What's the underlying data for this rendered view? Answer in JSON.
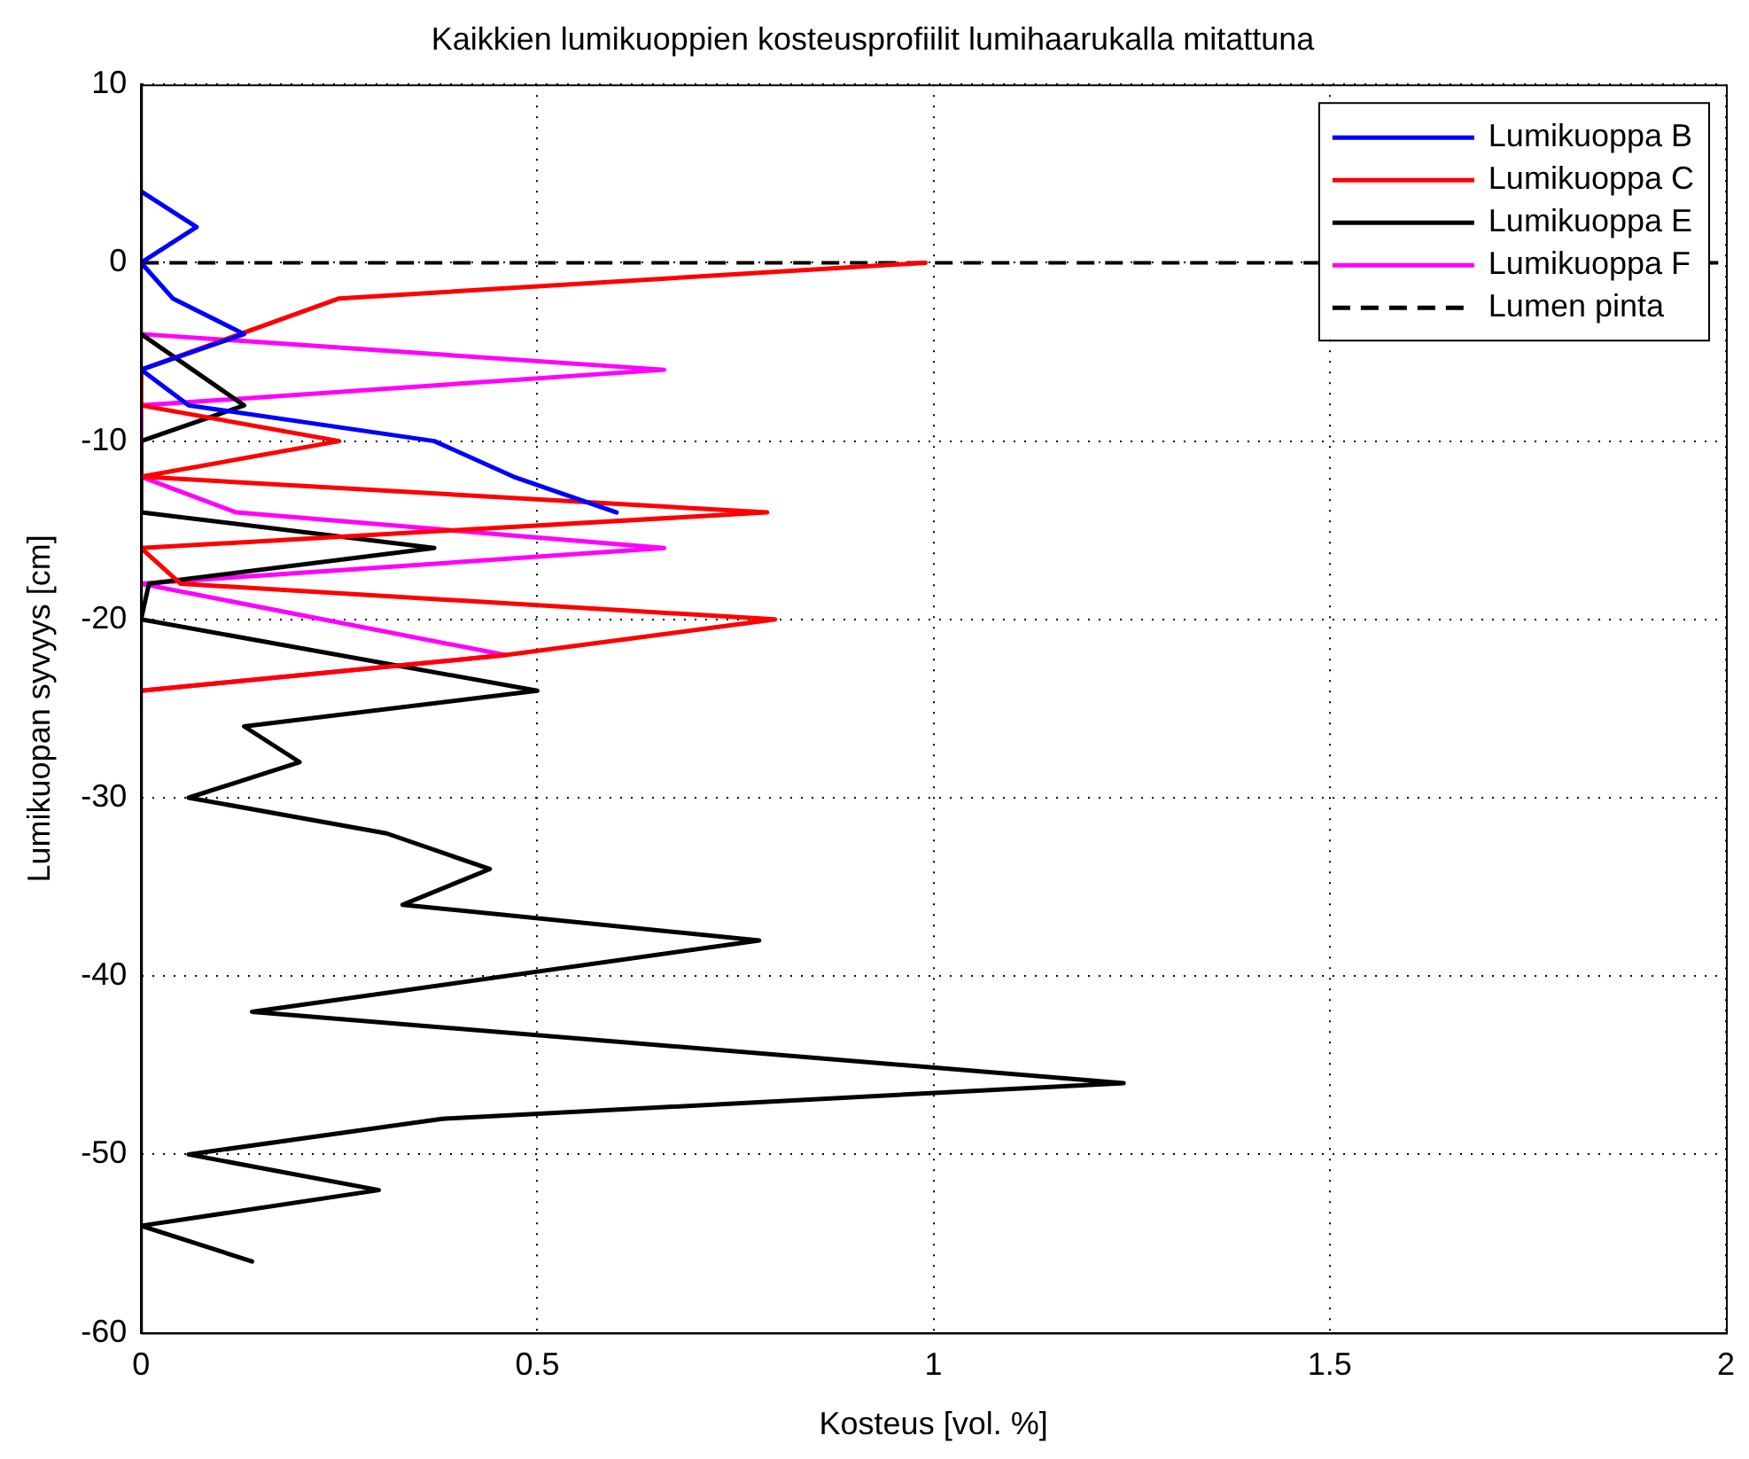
{
  "chart_data": {
    "type": "line",
    "title": "Kaikkien lumikuoppien kosteusprofiilit lumihaarukalla mitattuna",
    "xlabel": "Kosteus [vol. %]",
    "ylabel": "Lumikuopan syvyys [cm]",
    "xlim": [
      0,
      2
    ],
    "xticks": [
      0,
      0.5,
      1,
      1.5,
      2
    ],
    "ylim": [
      -60,
      10
    ],
    "yticks": [
      -60,
      -50,
      -40,
      -30,
      -20,
      -10,
      0,
      10
    ],
    "grid": true,
    "legend": "top right",
    "marker": "none",
    "line_style": "solid",
    "series": [
      {
        "name": "Lumikuoppa B",
        "color": "#0000ff",
        "x": [
          0,
          0.07,
          0,
          0.04,
          0.13,
          0,
          0.06,
          0.37,
          0.47,
          0.6
        ],
        "values": [
          4,
          2,
          0,
          -2,
          -4,
          -6,
          -8,
          -10,
          -12,
          -14
        ]
      },
      {
        "name": "Lumikuoppa C",
        "color": "#ff0000",
        "x": [
          0.99,
          0.25,
          0,
          0,
          0.25,
          0,
          0.79,
          0,
          0.05,
          0.8,
          0.46,
          0
        ],
        "values": [
          0,
          -2,
          -6,
          -8,
          -10,
          -12,
          -14,
          -16,
          -18,
          -20,
          -22,
          -24
        ]
      },
      {
        "name": "Lumikuoppa E",
        "color": "#000000",
        "x": [
          0,
          0.13,
          0,
          0,
          0.37,
          0.01,
          0,
          0.5,
          0.13,
          0.2,
          0.06,
          0.31,
          0.44,
          0.33,
          0.78,
          0.14,
          1.24,
          0.38,
          0.06,
          0.3,
          0,
          0.14
        ],
        "values": [
          -4,
          -8,
          -10,
          -14,
          -16,
          -18,
          -20,
          -24,
          -26,
          -28,
          -30,
          -32,
          -34,
          -36,
          -38,
          -42,
          -46,
          -48,
          -50,
          -52,
          -54,
          -56
        ]
      },
      {
        "name": "Lumikuoppa F",
        "color": "#ff00ff",
        "x": [
          0,
          0.66,
          0,
          0,
          0.12,
          0.66,
          0,
          0.46,
          0
        ],
        "values": [
          -4,
          -6,
          -8,
          -12,
          -14,
          -16,
          -18,
          -22,
          -24
        ]
      }
    ],
    "ref_lines": [
      {
        "axis": "y",
        "value": 0,
        "label": "Lumen pinta",
        "color": "#000000",
        "line_style": "dashed"
      }
    ]
  }
}
